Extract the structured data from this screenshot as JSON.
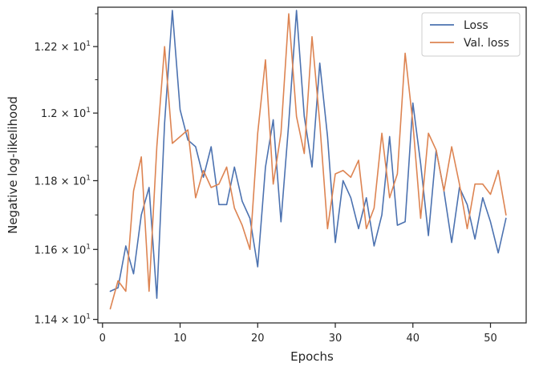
{
  "chart_data": {
    "type": "line",
    "xlabel": "Epochs",
    "ylabel": "Negative log-likelihood",
    "xlim": [
      -0.6,
      54.6
    ],
    "ylim": [
      11.39,
      12.32
    ],
    "y_scale": "log",
    "grid": false,
    "legend_position": "top-right",
    "x_ticks": [
      0,
      10,
      20,
      30,
      40,
      50
    ],
    "x_tick_labels": [
      "0",
      "10",
      "20",
      "30",
      "40",
      "50"
    ],
    "y_ticks": [
      {
        "value": 11.4,
        "mantissa": "1.14",
        "exponent": "1"
      },
      {
        "value": 11.6,
        "mantissa": "1.16",
        "exponent": "1"
      },
      {
        "value": 11.8,
        "mantissa": "1.18",
        "exponent": "1"
      },
      {
        "value": 12.0,
        "mantissa": "1.2",
        "exponent": "1"
      },
      {
        "value": 12.2,
        "mantissa": "1.22",
        "exponent": "1"
      }
    ],
    "x": [
      1,
      2,
      3,
      4,
      5,
      6,
      7,
      8,
      9,
      10,
      11,
      12,
      13,
      14,
      15,
      16,
      17,
      18,
      19,
      20,
      21,
      22,
      23,
      24,
      25,
      26,
      27,
      28,
      29,
      30,
      31,
      32,
      33,
      34,
      35,
      36,
      37,
      38,
      39,
      40,
      41,
      42,
      43,
      44,
      45,
      46,
      47,
      48,
      49,
      50,
      51,
      52
    ],
    "series": [
      {
        "name": "Loss",
        "color": "#4c72b0",
        "values": [
          11.48,
          11.49,
          11.61,
          11.53,
          11.7,
          11.78,
          11.46,
          11.97,
          12.31,
          12.01,
          11.92,
          11.9,
          11.81,
          11.9,
          11.73,
          11.73,
          11.84,
          11.74,
          11.69,
          11.55,
          11.84,
          11.98,
          11.68,
          11.97,
          12.31,
          11.99,
          11.84,
          12.15,
          11.93,
          11.62,
          11.8,
          11.75,
          11.66,
          11.75,
          11.61,
          11.7,
          11.93,
          11.67,
          11.68,
          12.03,
          11.85,
          11.64,
          11.89,
          11.77,
          11.62,
          11.78,
          11.73,
          11.63,
          11.75,
          11.68,
          11.59,
          11.69
        ]
      },
      {
        "name": "Val. loss",
        "color": "#dd8452",
        "values": [
          11.43,
          11.51,
          11.48,
          11.77,
          11.87,
          11.48,
          11.9,
          12.2,
          11.91,
          11.93,
          11.95,
          11.75,
          11.83,
          11.78,
          11.79,
          11.84,
          11.72,
          11.67,
          11.6,
          11.94,
          12.16,
          11.79,
          11.94,
          12.3,
          11.99,
          11.88,
          12.23,
          11.97,
          11.66,
          11.82,
          11.83,
          11.81,
          11.86,
          11.66,
          11.72,
          11.94,
          11.75,
          11.82,
          12.18,
          11.97,
          11.69,
          11.94,
          11.89,
          11.77,
          11.9,
          11.79,
          11.66,
          11.79,
          11.79,
          11.76,
          11.83,
          11.7
        ]
      }
    ]
  }
}
